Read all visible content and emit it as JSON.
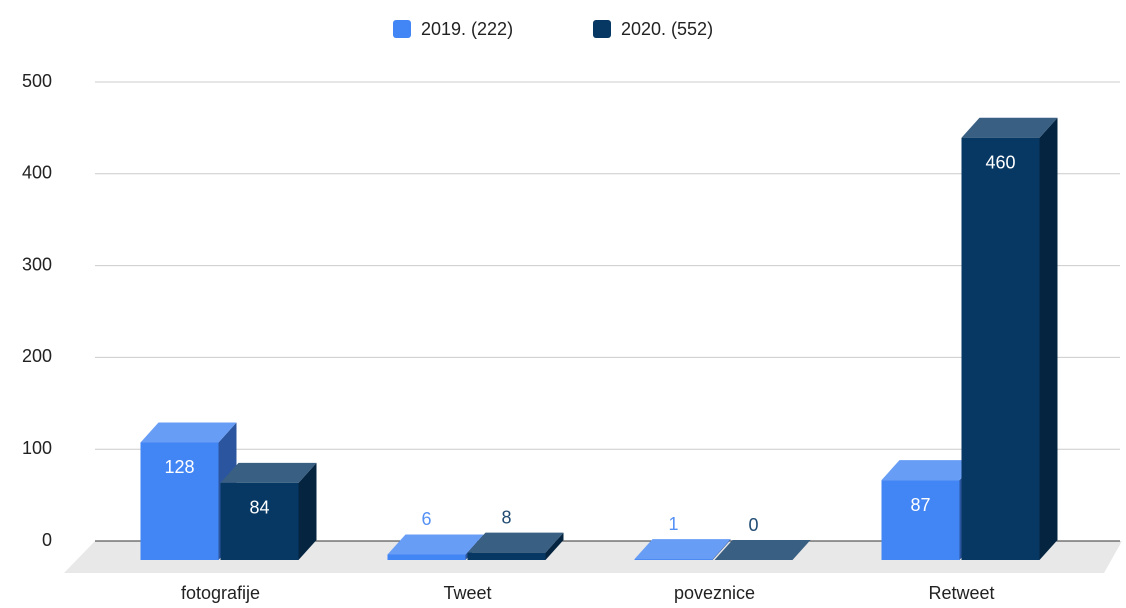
{
  "chart_data": {
    "type": "bar3d",
    "categories": [
      "fotografije",
      "Tweet",
      "poveznice",
      "Retweet"
    ],
    "series": [
      {
        "name": "2019. (222)",
        "color": "#4285f4",
        "values": [
          128,
          6,
          1,
          87
        ]
      },
      {
        "name": "2020. (552)",
        "color": "#073763",
        "values": [
          84,
          8,
          0,
          460
        ]
      }
    ],
    "ylim": [
      0,
      500
    ],
    "yticks": [
      0,
      100,
      200,
      300,
      400,
      500
    ],
    "grid": true,
    "legend": "top"
  }
}
